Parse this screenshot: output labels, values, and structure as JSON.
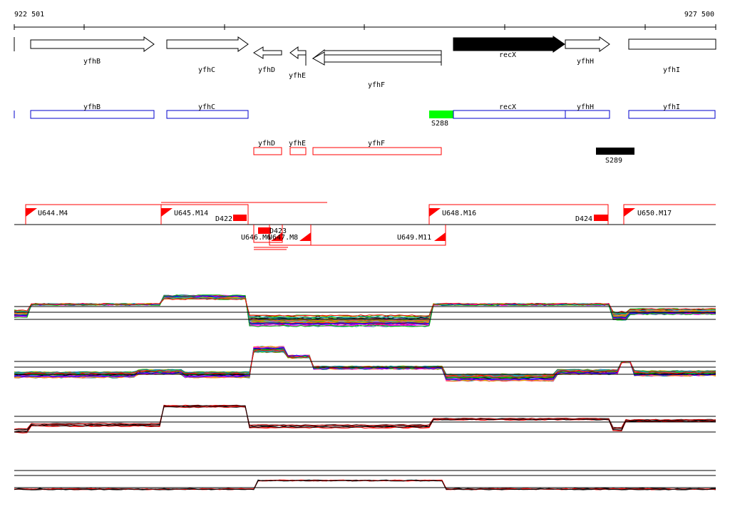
{
  "coords": {
    "start": "922 501",
    "end": "927 500"
  },
  "genes_top": [
    {
      "label": "yfhB",
      "strand": "+",
      "fill": "#ffffff"
    },
    {
      "label": "yfhC",
      "strand": "+",
      "fill": "#ffffff"
    },
    {
      "label": "yfhD",
      "strand": "-",
      "fill": "#ffffff"
    },
    {
      "label": "yfhE",
      "strand": "-",
      "fill": "#ffffff"
    },
    {
      "label": "yfhF",
      "strand": "-",
      "fill": "#ffffff"
    },
    {
      "label": "recX",
      "strand": "+",
      "fill": "#000000"
    },
    {
      "label": "yfhH",
      "strand": "+",
      "fill": "#ffffff"
    },
    {
      "label": "yfhI",
      "strand": "+",
      "fill": "#ffffff"
    }
  ],
  "genes_plus_boxes": [
    {
      "label": "yfhB"
    },
    {
      "label": "yfhC"
    },
    {
      "label": "recX"
    },
    {
      "label": "yfhH"
    },
    {
      "label": "yfhI"
    }
  ],
  "genes_minus_boxes": [
    {
      "label": "yfhD"
    },
    {
      "label": "yfhE"
    },
    {
      "label": "yfhF"
    }
  ],
  "special_features": [
    {
      "label": "S288",
      "color": "#00ff00"
    },
    {
      "label": "S289",
      "color": "#000000"
    }
  ],
  "transcripts_plus": [
    {
      "label": "U644.M4"
    },
    {
      "label": "U645.M14"
    },
    {
      "label": "U648.M16"
    },
    {
      "label": "U650.M17"
    }
  ],
  "transcripts_minus": [
    {
      "label": "U646.M6"
    },
    {
      "label": "U647.M8"
    },
    {
      "label": "U649.M11"
    }
  ],
  "downstream_features": [
    {
      "label": "D422"
    },
    {
      "label": "D423"
    },
    {
      "label": "D424"
    }
  ],
  "colors": {
    "gene_box_plus": "#0000cc",
    "gene_box_minus": "#ff0000",
    "transcript": "#ff0000",
    "axis": "#000000"
  },
  "expression_panels": [
    {
      "name": "panel-1",
      "palette": "multicolor"
    },
    {
      "name": "panel-2",
      "palette": "multicolor"
    },
    {
      "name": "panel-3",
      "palette": "black-red"
    },
    {
      "name": "panel-4",
      "palette": "black-red"
    }
  ]
}
